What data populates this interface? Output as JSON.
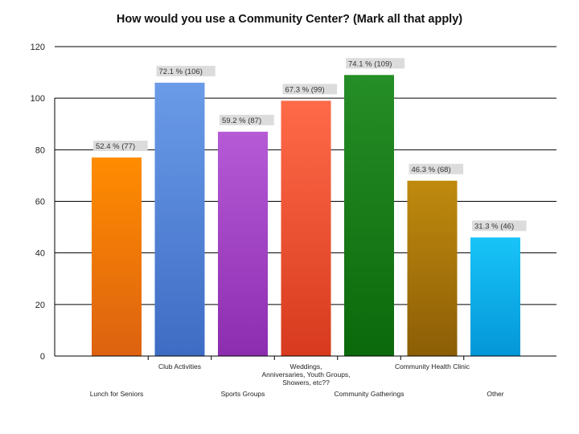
{
  "chart_data": {
    "type": "bar",
    "title": "How would you use a Community Center? (Mark all that apply)",
    "xlabel": "",
    "ylabel": "",
    "ylim": [
      0,
      120
    ],
    "yticks": [
      0,
      20,
      40,
      60,
      80,
      100,
      120
    ],
    "grid": true,
    "legend": "none",
    "categories": [
      [
        "Lunch for Seniors"
      ],
      [
        "Club Activities"
      ],
      [
        "Sports Groups"
      ],
      [
        "Weddings,",
        "Anniversaries, Youth Groups,",
        "Showers, etc??"
      ],
      [
        "Community Gatherings"
      ],
      [
        "Community Health Clinic"
      ],
      [
        "Other"
      ]
    ],
    "values": [
      77,
      106,
      87,
      99,
      109,
      68,
      46
    ],
    "data_labels": [
      "52.4 % (77)",
      "72.1 % (106)",
      "59.2 % (87)",
      "67.3 % (99)",
      "74.1 % (109)",
      "46.3 % (68)",
      "31.3 % (46)"
    ],
    "colors": [
      [
        "#ff8c00",
        "#dd6210"
      ],
      [
        "#6a9be8",
        "#3e6cc4"
      ],
      [
        "#b65ad6",
        "#8c2db0"
      ],
      [
        "#ff6a48",
        "#d73a1e"
      ],
      [
        "#268e26",
        "#0b690b"
      ],
      [
        "#c08a0e",
        "#8c5e06"
      ],
      [
        "#18c4f8",
        "#0496d8"
      ]
    ]
  }
}
